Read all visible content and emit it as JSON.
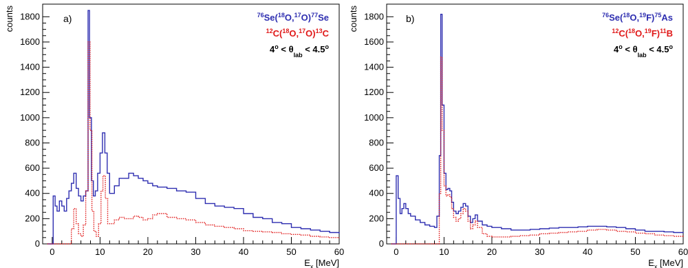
{
  "chart_data": [
    {
      "type": "line",
      "panel_label": "a)",
      "ylabel": "counts",
      "xlabel": {
        "main": "E",
        "sub": "x",
        "rest": " [MeV]"
      },
      "xlim": [
        -2,
        60
      ],
      "ylim": [
        0,
        1900
      ],
      "xticks": [
        0,
        10,
        20,
        30,
        40,
        50,
        60
      ],
      "yticks": [
        0,
        200,
        400,
        600,
        800,
        1000,
        1200,
        1400,
        1600,
        1800
      ],
      "colors": {
        "blue": "#2d2db0",
        "red": "#e01818"
      },
      "legend": {
        "line1": {
          "color": "#2d2db0",
          "parts": [
            [
              "sup",
              "76"
            ],
            [
              "t",
              "Se("
            ],
            [
              "sup",
              "18"
            ],
            [
              "t",
              "O,"
            ],
            [
              "sup",
              "17"
            ],
            [
              "t",
              "O)"
            ],
            [
              "sup",
              "77"
            ],
            [
              "t",
              "Se"
            ]
          ]
        },
        "line2": {
          "color": "#e01818",
          "parts": [
            [
              "sup",
              "12"
            ],
            [
              "t",
              "C("
            ],
            [
              "sup",
              "18"
            ],
            [
              "t",
              "O,"
            ],
            [
              "sup",
              "17"
            ],
            [
              "t",
              "O)"
            ],
            [
              "sup",
              "13"
            ],
            [
              "t",
              "C"
            ]
          ]
        },
        "line3": {
          "color": "#000000",
          "parts": [
            [
              "t",
              "4"
            ],
            [
              "sup",
              "o"
            ],
            [
              "t",
              " <  θ"
            ],
            [
              "sub",
              "lab"
            ],
            [
              "t",
              "  < 4.5"
            ],
            [
              "sup",
              "o"
            ]
          ]
        }
      },
      "series": [
        {
          "style": "solid",
          "color": "#2d2db0",
          "points": [
            [
              -1,
              0
            ],
            [
              -0.2,
              0
            ],
            [
              0.2,
              380
            ],
            [
              0.6,
              300
            ],
            [
              1,
              260
            ],
            [
              1.5,
              340
            ],
            [
              2,
              300
            ],
            [
              2.5,
              260
            ],
            [
              3,
              360
            ],
            [
              3.5,
              420
            ],
            [
              4,
              480
            ],
            [
              4.5,
              560
            ],
            [
              5,
              440
            ],
            [
              5.5,
              380
            ],
            [
              6,
              340
            ],
            [
              6.5,
              380
            ],
            [
              7,
              420
            ],
            [
              7.5,
              1850
            ],
            [
              7.8,
              1000
            ],
            [
              8.2,
              500
            ],
            [
              8.6,
              380
            ],
            [
              9,
              420
            ],
            [
              9.5,
              560
            ],
            [
              10,
              720
            ],
            [
              10.5,
              880
            ],
            [
              11,
              720
            ],
            [
              11.5,
              560
            ],
            [
              12,
              400
            ],
            [
              13,
              460
            ],
            [
              14,
              520
            ],
            [
              15,
              520
            ],
            [
              16,
              560
            ],
            [
              17,
              540
            ],
            [
              18,
              520
            ],
            [
              19,
              500
            ],
            [
              20,
              480
            ],
            [
              21,
              460
            ],
            [
              22,
              450
            ],
            [
              24,
              440
            ],
            [
              26,
              420
            ],
            [
              28,
              410
            ],
            [
              30,
              360
            ],
            [
              32,
              320
            ],
            [
              34,
              300
            ],
            [
              36,
              290
            ],
            [
              38,
              280
            ],
            [
              40,
              240
            ],
            [
              42,
              210
            ],
            [
              44,
              200
            ],
            [
              46,
              170
            ],
            [
              48,
              160
            ],
            [
              50,
              130
            ],
            [
              52,
              120
            ],
            [
              54,
              110
            ],
            [
              56,
              100
            ],
            [
              58,
              90
            ],
            [
              60,
              80
            ]
          ]
        },
        {
          "style": "dotted",
          "color": "#e01818",
          "points": [
            [
              -1,
              0
            ],
            [
              3.5,
              0
            ],
            [
              4,
              120
            ],
            [
              4.5,
              280
            ],
            [
              5,
              160
            ],
            [
              5.5,
              80
            ],
            [
              6,
              60
            ],
            [
              6.5,
              150
            ],
            [
              7,
              420
            ],
            [
              7.5,
              1600
            ],
            [
              7.9,
              900
            ],
            [
              8.3,
              260
            ],
            [
              8.7,
              100
            ],
            [
              9.2,
              60
            ],
            [
              9.7,
              160
            ],
            [
              10.2,
              420
            ],
            [
              10.6,
              540
            ],
            [
              11.1,
              360
            ],
            [
              11.6,
              160
            ],
            [
              12.2,
              160
            ],
            [
              13,
              190
            ],
            [
              14,
              210
            ],
            [
              15,
              200
            ],
            [
              16,
              200
            ],
            [
              17,
              220
            ],
            [
              18,
              210
            ],
            [
              19,
              190
            ],
            [
              20,
              200
            ],
            [
              21,
              230
            ],
            [
              22,
              240
            ],
            [
              24,
              210
            ],
            [
              26,
              200
            ],
            [
              28,
              190
            ],
            [
              30,
              170
            ],
            [
              32,
              150
            ],
            [
              34,
              140
            ],
            [
              36,
              130
            ],
            [
              38,
              120
            ],
            [
              40,
              105
            ],
            [
              42,
              100
            ],
            [
              44,
              95
            ],
            [
              46,
              90
            ],
            [
              48,
              80
            ],
            [
              50,
              75
            ],
            [
              52,
              70
            ],
            [
              54,
              60
            ],
            [
              56,
              55
            ],
            [
              58,
              50
            ],
            [
              60,
              45
            ]
          ]
        }
      ]
    },
    {
      "type": "line",
      "panel_label": "b)",
      "ylabel": "counts",
      "xlabel": {
        "main": "E",
        "sub": "x",
        "rest": " [MeV]"
      },
      "xlim": [
        -2,
        60
      ],
      "ylim": [
        0,
        1900
      ],
      "xticks": [
        0,
        10,
        20,
        30,
        40,
        50,
        60
      ],
      "yticks": [
        0,
        200,
        400,
        600,
        800,
        1000,
        1200,
        1400,
        1600,
        1800
      ],
      "colors": {
        "blue": "#2d2db0",
        "red": "#e01818"
      },
      "legend": {
        "line1": {
          "color": "#2d2db0",
          "parts": [
            [
              "sup",
              "76"
            ],
            [
              "t",
              "Se("
            ],
            [
              "sup",
              "18"
            ],
            [
              "t",
              "O,"
            ],
            [
              "sup",
              "19"
            ],
            [
              "t",
              "F)"
            ],
            [
              "sup",
              "75"
            ],
            [
              "t",
              "As"
            ]
          ]
        },
        "line2": {
          "color": "#e01818",
          "parts": [
            [
              "sup",
              "12"
            ],
            [
              "t",
              "C("
            ],
            [
              "sup",
              "18"
            ],
            [
              "t",
              "O,"
            ],
            [
              "sup",
              "19"
            ],
            [
              "t",
              "F)"
            ],
            [
              "sup",
              "11"
            ],
            [
              "t",
              "B"
            ]
          ]
        },
        "line3": {
          "color": "#000000",
          "parts": [
            [
              "t",
              "4"
            ],
            [
              "sup",
              "o"
            ],
            [
              "t",
              " <  θ"
            ],
            [
              "sub",
              "lab"
            ],
            [
              "t",
              "  < 4.5"
            ],
            [
              "sup",
              "o"
            ]
          ]
        }
      },
      "series": [
        {
          "style": "solid",
          "color": "#2d2db0",
          "points": [
            [
              -1,
              0
            ],
            [
              -0.3,
              0
            ],
            [
              0,
              540
            ],
            [
              0.4,
              360
            ],
            [
              0.8,
              240
            ],
            [
              1.2,
              280
            ],
            [
              1.6,
              320
            ],
            [
              2,
              280
            ],
            [
              2.5,
              240
            ],
            [
              3,
              220
            ],
            [
              4,
              190
            ],
            [
              5,
              170
            ],
            [
              6,
              150
            ],
            [
              7,
              140
            ],
            [
              8,
              130
            ],
            [
              8.5,
              220
            ],
            [
              9,
              700
            ],
            [
              9.3,
              1820
            ],
            [
              9.6,
              1100
            ],
            [
              10,
              560
            ],
            [
              10.4,
              430
            ],
            [
              10.8,
              440
            ],
            [
              11.2,
              420
            ],
            [
              11.6,
              330
            ],
            [
              12,
              260
            ],
            [
              12.5,
              240
            ],
            [
              13,
              260
            ],
            [
              13.5,
              290
            ],
            [
              14,
              320
            ],
            [
              14.5,
              300
            ],
            [
              15,
              220
            ],
            [
              15.5,
              170
            ],
            [
              16,
              200
            ],
            [
              16.5,
              230
            ],
            [
              17,
              180
            ],
            [
              18,
              150
            ],
            [
              19,
              140
            ],
            [
              20,
              130
            ],
            [
              22,
              120
            ],
            [
              24,
              110
            ],
            [
              26,
              110
            ],
            [
              28,
              115
            ],
            [
              30,
              120
            ],
            [
              32,
              125
            ],
            [
              34,
              130
            ],
            [
              36,
              130
            ],
            [
              38,
              135
            ],
            [
              40,
              140
            ],
            [
              42,
              140
            ],
            [
              44,
              135
            ],
            [
              46,
              130
            ],
            [
              48,
              120
            ],
            [
              50,
              110
            ],
            [
              52,
              100
            ],
            [
              54,
              100
            ],
            [
              56,
              95
            ],
            [
              58,
              90
            ],
            [
              60,
              85
            ]
          ]
        },
        {
          "style": "dotted",
          "color": "#e01818",
          "points": [
            [
              -1,
              0
            ],
            [
              8.6,
              0
            ],
            [
              9,
              400
            ],
            [
              9.3,
              1480
            ],
            [
              9.6,
              900
            ],
            [
              10,
              460
            ],
            [
              10.4,
              380
            ],
            [
              10.8,
              390
            ],
            [
              11.2,
              370
            ],
            [
              11.6,
              280
            ],
            [
              12,
              210
            ],
            [
              12.5,
              180
            ],
            [
              13,
              200
            ],
            [
              13.5,
              240
            ],
            [
              14,
              280
            ],
            [
              14.5,
              260
            ],
            [
              15,
              180
            ],
            [
              15.5,
              120
            ],
            [
              16,
              150
            ],
            [
              16.5,
              180
            ],
            [
              17,
              130
            ],
            [
              18,
              80
            ],
            [
              19,
              60
            ],
            [
              20,
              55
            ],
            [
              22,
              55
            ],
            [
              24,
              60
            ],
            [
              26,
              65
            ],
            [
              28,
              70
            ],
            [
              30,
              80
            ],
            [
              32,
              85
            ],
            [
              34,
              90
            ],
            [
              36,
              95
            ],
            [
              38,
              100
            ],
            [
              40,
              110
            ],
            [
              42,
              115
            ],
            [
              44,
              110
            ],
            [
              46,
              100
            ],
            [
              48,
              95
            ],
            [
              50,
              85
            ],
            [
              52,
              80
            ],
            [
              54,
              70
            ],
            [
              56,
              65
            ],
            [
              58,
              60
            ],
            [
              60,
              55
            ]
          ]
        }
      ]
    }
  ]
}
